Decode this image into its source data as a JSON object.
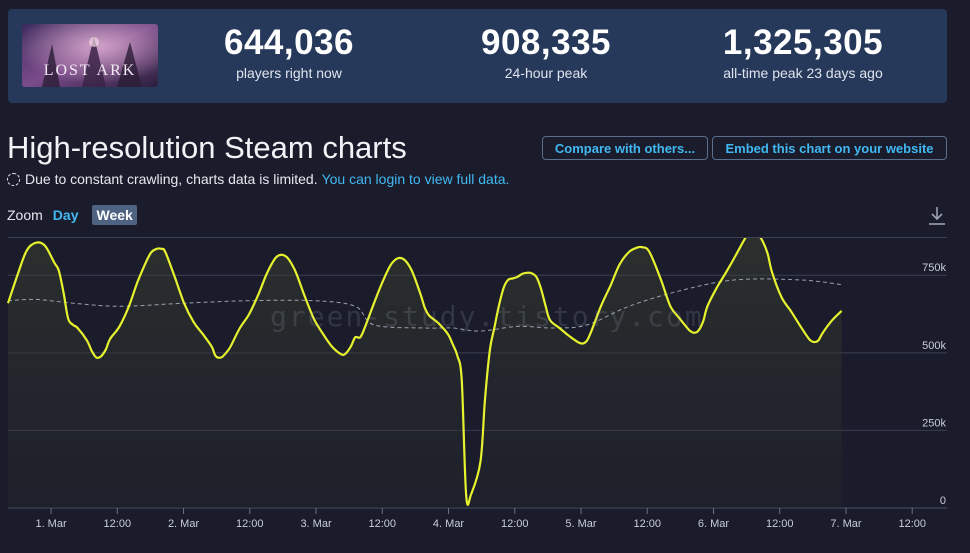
{
  "stats": {
    "game_name": "LOST ARK",
    "current": {
      "value": "644,036",
      "label": "players right now"
    },
    "peak24": {
      "value": "908,335",
      "label": "24-hour peak"
    },
    "alltime": {
      "value": "1,325,305",
      "label": "all-time peak 23 days ago"
    }
  },
  "header": {
    "title": "High-resolution Steam charts",
    "notice_text": "Due to constant crawling, charts data is limited.",
    "notice_link": "You can login to view full data.",
    "compare_label": "Compare with others...",
    "embed_label": "Embed this chart on your website"
  },
  "zoom": {
    "label": "Zoom",
    "day": "Day",
    "week": "Week",
    "selected": "Week"
  },
  "watermark": "green-study.tistory.com",
  "colors": {
    "line": "#e6f22e",
    "average": "#9aa0b0",
    "link": "#41b8f2",
    "card": "#27395a",
    "background": "#1a1c2b"
  },
  "chart_data": {
    "type": "line",
    "title": "",
    "xlabel": "",
    "ylabel": "",
    "xlim": [
      -7.8,
      162.3
    ],
    "ylim": [
      0,
      870000
    ],
    "y_ticks": [
      {
        "value": 0,
        "label": "0"
      },
      {
        "value": 250000,
        "label": "250k"
      },
      {
        "value": 500000,
        "label": "500k"
      },
      {
        "value": 750000,
        "label": "750k"
      }
    ],
    "x_ticks": [
      {
        "t": 0,
        "label": "1. Mar"
      },
      {
        "t": 12,
        "label": "12:00"
      },
      {
        "t": 24,
        "label": "2. Mar"
      },
      {
        "t": 36,
        "label": "12:00"
      },
      {
        "t": 48,
        "label": "3. Mar"
      },
      {
        "t": 60,
        "label": "12:00"
      },
      {
        "t": 72,
        "label": "4. Mar"
      },
      {
        "t": 84,
        "label": "12:00"
      },
      {
        "t": 96,
        "label": "5. Mar"
      },
      {
        "t": 108,
        "label": "12:00"
      },
      {
        "t": 120,
        "label": "6. Mar"
      },
      {
        "t": 132,
        "label": "12:00"
      },
      {
        "t": 144,
        "label": "7. Mar"
      },
      {
        "t": 156,
        "label": "12:00"
      }
    ],
    "series": [
      {
        "values": [
          [
            -7.8,
            660000
          ],
          [
            -6.1,
            750000
          ],
          [
            -4.4,
            830000
          ],
          [
            -2.7,
            855000
          ],
          [
            -1.1,
            845000
          ],
          [
            0.6,
            790000
          ],
          [
            1.4,
            765000
          ],
          [
            2.3,
            690000
          ],
          [
            3.1,
            610000
          ],
          [
            4.0,
            590000
          ],
          [
            4.8,
            580000
          ],
          [
            6.5,
            540000
          ],
          [
            7.4,
            505000
          ],
          [
            8.2,
            485000
          ],
          [
            9.0,
            488000
          ],
          [
            9.9,
            510000
          ],
          [
            10.7,
            545000
          ],
          [
            12.4,
            585000
          ],
          [
            14.1,
            650000
          ],
          [
            15.7,
            730000
          ],
          [
            17.4,
            800000
          ],
          [
            18.2,
            825000
          ],
          [
            19.1,
            835000
          ],
          [
            20.0,
            835000
          ],
          [
            20.7,
            825000
          ],
          [
            22.4,
            745000
          ],
          [
            24.1,
            660000
          ],
          [
            25.8,
            600000
          ],
          [
            27.5,
            560000
          ],
          [
            29.1,
            520000
          ],
          [
            29.8,
            490000
          ],
          [
            30.8,
            485000
          ],
          [
            31.7,
            500000
          ],
          [
            32.5,
            520000
          ],
          [
            34.2,
            580000
          ],
          [
            35.9,
            625000
          ],
          [
            37.6,
            690000
          ],
          [
            39.2,
            760000
          ],
          [
            40.9,
            810000
          ],
          [
            42.6,
            810000
          ],
          [
            44.2,
            765000
          ],
          [
            45.9,
            685000
          ],
          [
            47.6,
            610000
          ],
          [
            49.3,
            560000
          ],
          [
            50.9,
            520000
          ],
          [
            52.6,
            495000
          ],
          [
            53.4,
            498000
          ],
          [
            54.3,
            520000
          ],
          [
            55.1,
            550000
          ],
          [
            56.0,
            550000
          ],
          [
            56.8,
            580000
          ],
          [
            58.5,
            660000
          ],
          [
            60.2,
            735000
          ],
          [
            61.8,
            790000
          ],
          [
            63.5,
            805000
          ],
          [
            65.2,
            770000
          ],
          [
            66.9,
            690000
          ],
          [
            67.7,
            645000
          ],
          [
            68.5,
            620000
          ],
          [
            70.2,
            595000
          ],
          [
            71.9,
            560000
          ],
          [
            72.7,
            530000
          ],
          [
            73.6,
            490000
          ],
          [
            74.4,
            410000
          ],
          [
            75.2,
            40000
          ],
          [
            76.1,
            45000
          ],
          [
            77.8,
            150000
          ],
          [
            78.6,
            350000
          ],
          [
            79.5,
            510000
          ],
          [
            80.3,
            580000
          ],
          [
            81.1,
            650000
          ],
          [
            82.0,
            710000
          ],
          [
            82.8,
            735000
          ],
          [
            83.7,
            740000
          ],
          [
            84.5,
            745000
          ],
          [
            85.4,
            755000
          ],
          [
            86.2,
            758000
          ],
          [
            87.0,
            757000
          ],
          [
            87.9,
            745000
          ],
          [
            88.7,
            710000
          ],
          [
            89.6,
            650000
          ],
          [
            90.4,
            605000
          ],
          [
            92.1,
            580000
          ],
          [
            93.8,
            555000
          ],
          [
            95.4,
            535000
          ],
          [
            96.3,
            530000
          ],
          [
            97.1,
            540000
          ],
          [
            98.0,
            575000
          ],
          [
            99.6,
            650000
          ],
          [
            101.3,
            715000
          ],
          [
            103.0,
            785000
          ],
          [
            104.7,
            825000
          ],
          [
            106.3,
            840000
          ],
          [
            107.2,
            840000
          ],
          [
            108.0,
            835000
          ],
          [
            108.8,
            810000
          ],
          [
            110.5,
            735000
          ],
          [
            112.2,
            650000
          ],
          [
            113.9,
            610000
          ],
          [
            115.5,
            575000
          ],
          [
            116.4,
            565000
          ],
          [
            117.2,
            570000
          ],
          [
            118.1,
            600000
          ],
          [
            118.9,
            650000
          ],
          [
            120.6,
            710000
          ],
          [
            122.3,
            760000
          ],
          [
            123.9,
            810000
          ],
          [
            125.6,
            865000
          ],
          [
            126.4,
            885000
          ],
          [
            127.3,
            888000
          ],
          [
            128.1,
            880000
          ],
          [
            128.9,
            860000
          ],
          [
            129.8,
            820000
          ],
          [
            130.6,
            760000
          ],
          [
            132.3,
            680000
          ],
          [
            134.0,
            635000
          ],
          [
            135.6,
            590000
          ],
          [
            137.3,
            545000
          ],
          [
            138.2,
            535000
          ],
          [
            139.0,
            540000
          ],
          [
            139.8,
            565000
          ],
          [
            141.5,
            605000
          ],
          [
            143.2,
            635000
          ]
        ]
      },
      {
        "style": "dashed",
        "values": [
          [
            -7.8,
            668000
          ],
          [
            -2.7,
            672000
          ],
          [
            4.0,
            660000
          ],
          [
            12.4,
            650000
          ],
          [
            24.1,
            660000
          ],
          [
            35.9,
            668000
          ],
          [
            47.6,
            668000
          ],
          [
            55.1,
            650000
          ],
          [
            58.5,
            590000
          ],
          [
            67.7,
            580000
          ],
          [
            72.7,
            580000
          ],
          [
            77.8,
            570000
          ],
          [
            84.5,
            585000
          ],
          [
            91.2,
            580000
          ],
          [
            97.1,
            590000
          ],
          [
            104.7,
            650000
          ],
          [
            113.9,
            700000
          ],
          [
            123.9,
            735000
          ],
          [
            135.6,
            735000
          ],
          [
            143.2,
            720000
          ]
        ]
      }
    ]
  }
}
